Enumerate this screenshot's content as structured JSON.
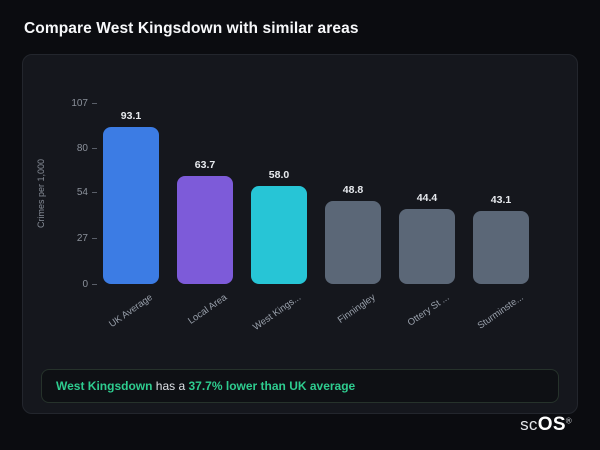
{
  "page": {
    "title": "Compare West Kingsdown with similar areas"
  },
  "chart_data": {
    "type": "bar",
    "ylabel": "Crimes per 1,000",
    "ylim": [
      0,
      107
    ],
    "yticks": [
      0,
      27,
      54,
      80,
      107
    ],
    "grid": false,
    "categories": [
      "UK Average",
      "Local Area",
      "West Kings...",
      "Finningley",
      "Ottery St ...",
      "Sturminste..."
    ],
    "values": [
      93.1,
      63.7,
      58.0,
      48.8,
      44.4,
      43.1
    ],
    "value_labels": [
      "93.1",
      "63.7",
      "58.0",
      "48.8",
      "44.4",
      "43.1"
    ],
    "bar_colors": [
      "#3c7ce4",
      "#7d5bd9",
      "#27c5d6",
      "#5b6777",
      "#5b6777",
      "#5b6777"
    ]
  },
  "callout": {
    "area": "West Kingsdown",
    "middle": " has a ",
    "stat": "37.7% lower than UK average"
  },
  "watermark": {
    "prefix": "sc",
    "suffix": "OS",
    "reg": "®"
  }
}
